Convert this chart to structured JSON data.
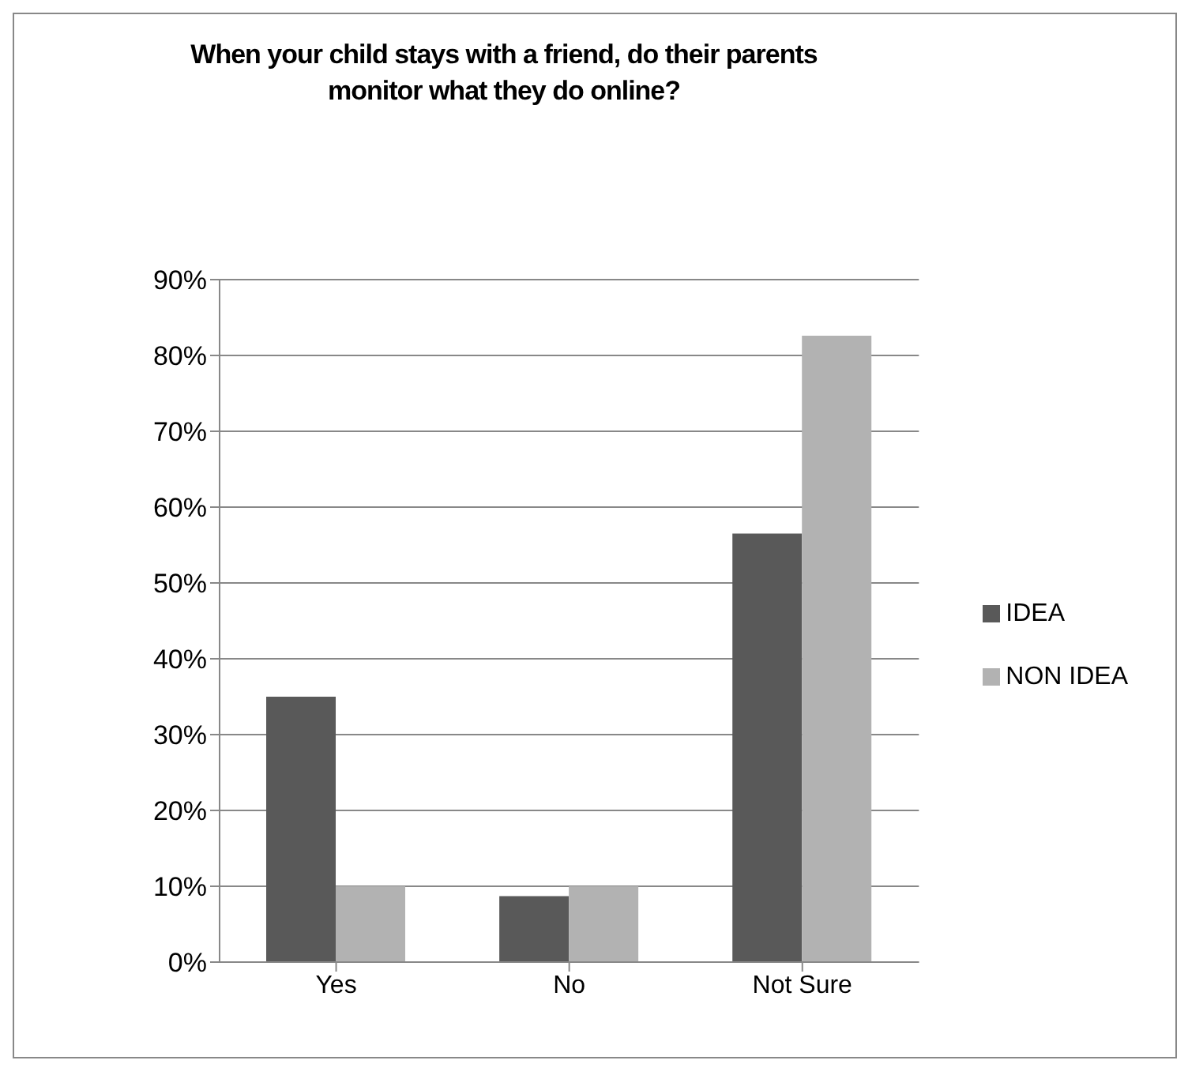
{
  "chart_data": {
    "type": "bar",
    "title": "When your child stays with a friend, do their parents monitor what they do online?",
    "categories": [
      "Yes",
      "No",
      "Not Sure"
    ],
    "series": [
      {
        "name": "IDEA",
        "color": "#595959",
        "values": [
          0.35,
          0.087,
          0.565
        ]
      },
      {
        "name": "NON IDEA",
        "color": "#b2b2b2",
        "values": [
          0.1,
          0.1,
          0.826
        ]
      }
    ],
    "ylim": [
      0,
      0.9
    ],
    "yticks": [
      {
        "value": 0,
        "label": "0%"
      },
      {
        "value": 0.1,
        "label": "10%"
      },
      {
        "value": 0.2,
        "label": "20%"
      },
      {
        "value": 0.3,
        "label": "30%"
      },
      {
        "value": 0.4,
        "label": "40%"
      },
      {
        "value": 0.5,
        "label": "50%"
      },
      {
        "value": 0.6,
        "label": "60%"
      },
      {
        "value": 0.7,
        "label": "70%"
      },
      {
        "value": 0.8,
        "label": "80%"
      },
      {
        "value": 0.9,
        "label": "90%"
      }
    ],
    "grid": "y",
    "legend": "right"
  }
}
